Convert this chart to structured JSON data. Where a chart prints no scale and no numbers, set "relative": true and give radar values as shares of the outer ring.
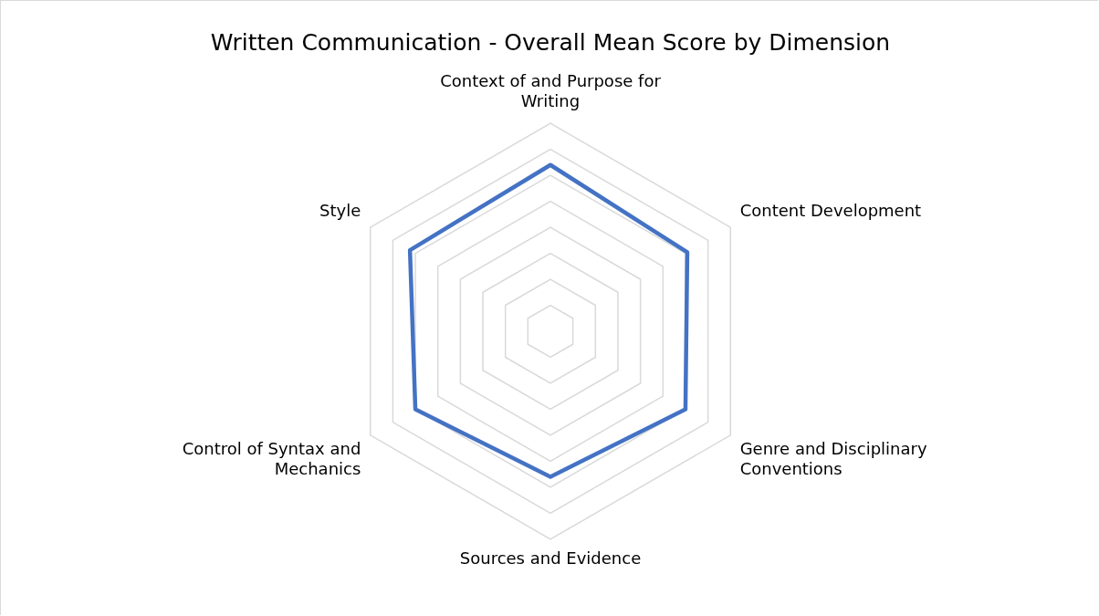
{
  "chart_data": {
    "type": "radar",
    "title": "Written Communication - Overall Mean Score by Dimension",
    "categories": [
      "Context of and Purpose for Writing",
      "Content Development",
      "Genre and Disciplinary Conventions",
      "Sources and Evidence",
      "Control of Syntax and Mechanics",
      "Style"
    ],
    "series": [
      {
        "color": "#4472c4",
        "values": [
          0.8,
          0.76,
          0.75,
          0.7,
          0.75,
          0.78
        ]
      }
    ],
    "relative": true,
    "grid": true,
    "legend": false,
    "marker": "none"
  }
}
